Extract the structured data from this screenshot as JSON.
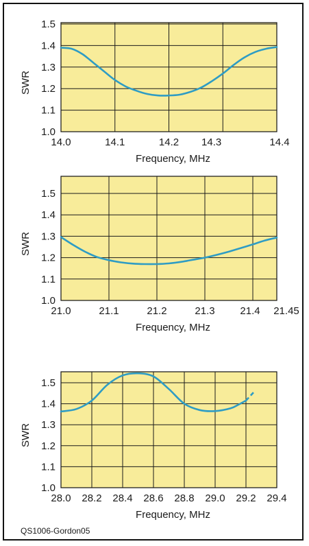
{
  "credit": "QS1006-Gordon05",
  "colors": {
    "plot_bg": "#f8ec9a",
    "series": "#2e9cc4",
    "grid": "#1a1a1a"
  },
  "chart_data": [
    {
      "type": "line",
      "xlabel": "Frequency, MHz",
      "ylabel": "SWR",
      "xlim": [
        14.0,
        14.4
      ],
      "ylim": [
        1.0,
        1.5
      ],
      "xticks": [
        14.0,
        14.1,
        14.2,
        14.3,
        14.4
      ],
      "xtick_labels": [
        "14.0",
        "14.1",
        "14.2",
        "14.3",
        "14.4"
      ],
      "yticks": [
        1.0,
        1.1,
        1.2,
        1.3,
        1.4,
        1.5
      ],
      "ytick_labels": [
        "1.0",
        "1.1",
        "1.2",
        "1.3",
        "1.4",
        "1.5"
      ],
      "grid": true,
      "series": [
        {
          "x": [
            14.0,
            14.02,
            14.04,
            14.06,
            14.08,
            14.1,
            14.12,
            14.14,
            14.16,
            14.18,
            14.2,
            14.22,
            14.24,
            14.26,
            14.28,
            14.3,
            14.32,
            14.34,
            14.36,
            14.38,
            14.4
          ],
          "y": [
            1.39,
            1.385,
            1.36,
            1.32,
            1.28,
            1.24,
            1.21,
            1.19,
            1.175,
            1.168,
            1.168,
            1.172,
            1.185,
            1.205,
            1.235,
            1.27,
            1.31,
            1.345,
            1.37,
            1.385,
            1.393
          ]
        }
      ]
    },
    {
      "type": "line",
      "xlabel": "Frequency, MHz",
      "ylabel": "SWR",
      "xlim": [
        21.0,
        21.45
      ],
      "ylim": [
        1.0,
        1.5
      ],
      "xticks": [
        21.0,
        21.1,
        21.2,
        21.3,
        21.4,
        21.45
      ],
      "xtick_labels": [
        "21.0",
        "21.1",
        "21.2",
        "21.3",
        "21.4",
        "21.45"
      ],
      "yticks": [
        1.0,
        1.1,
        1.2,
        1.3,
        1.4,
        1.5
      ],
      "ytick_labels": [
        "1.0",
        "1.1",
        "1.2",
        "1.3",
        "1.4",
        "1.5"
      ],
      "grid": true,
      "series": [
        {
          "x": [
            21.0,
            21.025,
            21.05,
            21.075,
            21.1,
            21.125,
            21.15,
            21.175,
            21.2,
            21.225,
            21.25,
            21.275,
            21.3,
            21.325,
            21.35,
            21.375,
            21.4,
            21.425,
            21.45
          ],
          "y": [
            1.296,
            1.26,
            1.228,
            1.203,
            1.188,
            1.178,
            1.172,
            1.17,
            1.17,
            1.173,
            1.18,
            1.19,
            1.2,
            1.213,
            1.228,
            1.245,
            1.262,
            1.28,
            1.294
          ]
        }
      ]
    },
    {
      "type": "line",
      "xlabel": "Frequency, MHz",
      "ylabel": "SWR",
      "xlim": [
        28.0,
        29.4
      ],
      "ylim": [
        1.0,
        1.55
      ],
      "xticks": [
        28.0,
        28.2,
        28.4,
        28.6,
        28.8,
        29.0,
        29.2,
        29.4
      ],
      "xtick_labels": [
        "28.0",
        "28.2",
        "28.4",
        "28.6",
        "28.8",
        "29.0",
        "29.2",
        "29.4"
      ],
      "yticks": [
        1.0,
        1.1,
        1.2,
        1.3,
        1.4,
        1.5
      ],
      "ytick_labels": [
        "1.0",
        "1.1",
        "1.2",
        "1.3",
        "1.4",
        "1.5"
      ],
      "grid": true,
      "series": [
        {
          "x": [
            28.0,
            28.1,
            28.2,
            28.3,
            28.4,
            28.5,
            28.6,
            28.7,
            28.8,
            28.9,
            29.0,
            29.1,
            29.15,
            29.2
          ],
          "y": [
            1.363,
            1.375,
            1.415,
            1.49,
            1.535,
            1.545,
            1.53,
            1.47,
            1.4,
            1.37,
            1.365,
            1.378,
            1.395,
            1.415
          ]
        },
        {
          "style": "dashed",
          "x": [
            29.2,
            29.25
          ],
          "y": [
            1.415,
            1.455
          ]
        }
      ]
    }
  ]
}
